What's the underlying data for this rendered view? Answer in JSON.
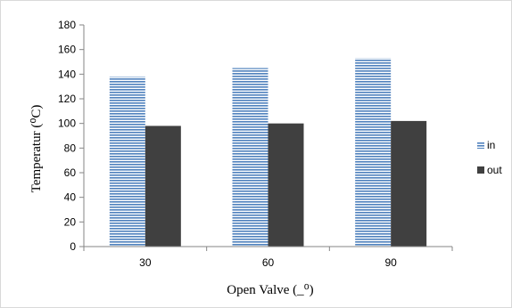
{
  "chart_data": {
    "type": "bar",
    "categories": [
      "30",
      "60",
      "90"
    ],
    "series": [
      {
        "name": "in",
        "values": [
          138,
          145,
          153
        ],
        "color": "#4f81bd",
        "pattern": "horizontal-lines"
      },
      {
        "name": "out",
        "values": [
          98,
          100,
          102
        ],
        "color": "#404040",
        "pattern": "solid"
      }
    ],
    "xlabel": "Open Valve  (_⁰)",
    "ylabel": "Temperatur  (⁰C)",
    "ylim": [
      0,
      180
    ],
    "yticks": [
      0,
      20,
      40,
      60,
      80,
      100,
      120,
      140,
      160,
      180
    ],
    "grid": false,
    "legend": "right"
  }
}
